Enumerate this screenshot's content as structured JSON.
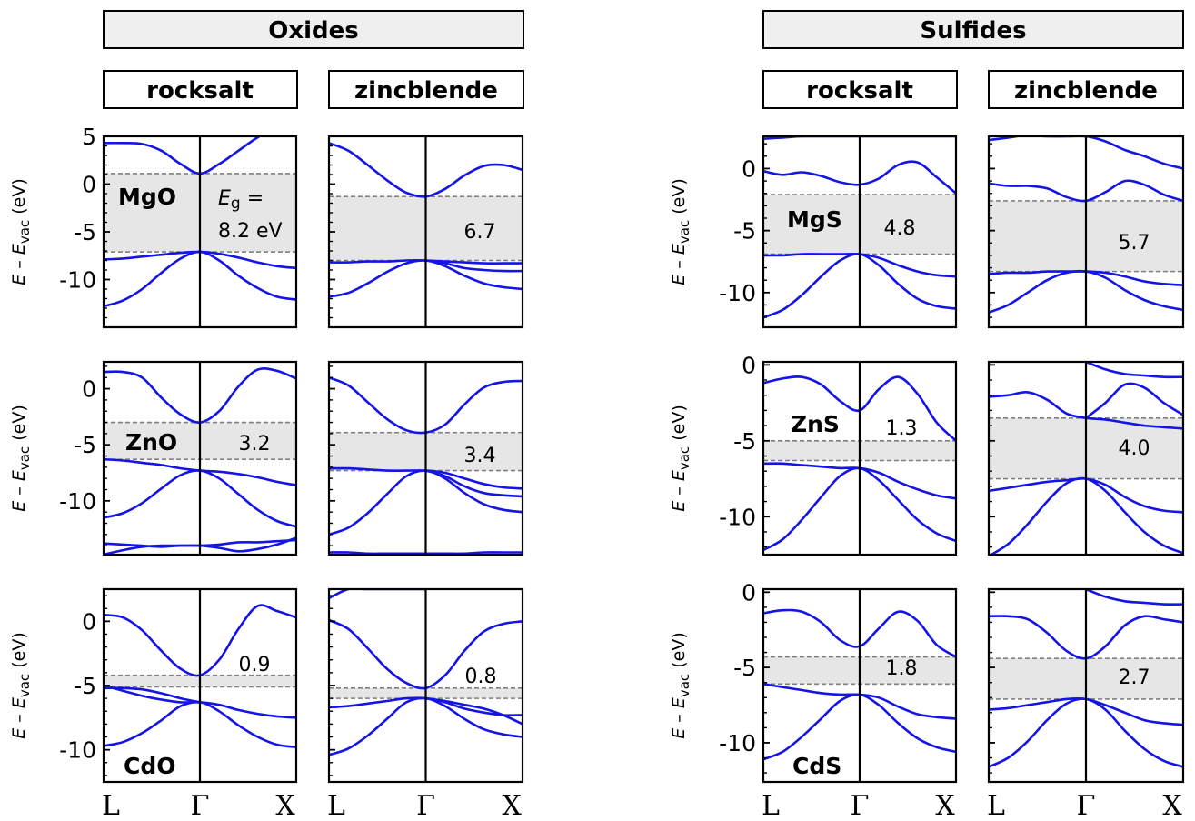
{
  "groups": [
    {
      "title": "Oxides",
      "structures": [
        "rocksalt",
        "zincblende"
      ]
    },
    {
      "title": "Sulfides",
      "structures": [
        "rocksalt",
        "zincblende"
      ]
    }
  ],
  "kpoints": [
    "L",
    "Γ",
    "X"
  ],
  "ylabel": {
    "e": "E",
    "dash": " – ",
    "sub_e": "E",
    "sub": "vac",
    "unit": " (eV)"
  },
  "eg_label": {
    "prefix": "E",
    "sub": "g",
    "eq": " ="
  },
  "colors": {
    "band": "#1414e6",
    "gap": "#e6e6e6",
    "dash": "#808080",
    "header": "#efefef"
  },
  "chart_data": [
    {
      "type": "line",
      "material": "MgO",
      "structure": "rocksalt",
      "gap_label": "8.2 eV",
      "gap": 8.2,
      "vbm": -7.1,
      "cbm": 1.1,
      "ylim": [
        -15,
        5
      ],
      "yticks": [
        5,
        0,
        -5,
        -10
      ],
      "x": [
        0,
        0.1,
        0.2,
        0.3,
        0.4,
        0.5,
        0.6,
        0.7,
        0.8,
        0.9,
        1.0
      ],
      "series": [
        {
          "left": [
            4.3,
            4.3,
            4.2,
            3.5,
            2.1,
            1.1
          ],
          "right": [
            1.1,
            2.1,
            3.5,
            4.9,
            6.0,
            6.6
          ]
        },
        {
          "left": [
            -7.9,
            -7.8,
            -7.6,
            -7.4,
            -7.2,
            -7.1
          ],
          "right": [
            -7.1,
            -7.3,
            -7.7,
            -8.2,
            -8.6,
            -8.8
          ]
        },
        {
          "left": [
            -12.8,
            -12.2,
            -11.0,
            -9.3,
            -7.8,
            -7.1
          ],
          "right": [
            -7.1,
            -8.0,
            -9.6,
            -10.9,
            -11.8,
            -12.1
          ]
        }
      ]
    },
    {
      "type": "line",
      "material": "",
      "structure": "zincblende",
      "gap_label": "6.7",
      "gap": 6.7,
      "vbm": -8.0,
      "cbm": -1.3,
      "ylim": [
        -15,
        5
      ],
      "yticks": [
        5,
        0,
        -5,
        -10
      ],
      "series": [
        {
          "left": [
            4.3,
            3.5,
            2.0,
            0.4,
            -0.9,
            -1.3
          ],
          "right": [
            -1.3,
            -0.5,
            0.9,
            1.9,
            2.0,
            1.5
          ]
        },
        {
          "left": [
            -8.2,
            -8.2,
            -8.1,
            -8.1,
            -8.0,
            -8.0
          ],
          "right": [
            -8.0,
            -8.1,
            -8.2,
            -8.3,
            -8.3,
            -8.3
          ]
        },
        {
          "left": [
            -11.8,
            -11.4,
            -10.4,
            -9.2,
            -8.3,
            -8.0
          ],
          "right": [
            -8.0,
            -8.6,
            -9.6,
            -10.4,
            -10.8,
            -11.0
          ]
        },
        {
          "left": [],
          "right": [
            -8.0,
            -8.3,
            -8.8,
            -9.0,
            -9.1,
            -9.1
          ]
        }
      ]
    },
    {
      "type": "line",
      "material": "MgS",
      "structure": "rocksalt",
      "gap_label": "4.8",
      "gap": 4.8,
      "vbm": -6.9,
      "cbm": -2.1,
      "ylim": [
        -12.8,
        2.6
      ],
      "yticks": [
        0,
        -5,
        -10
      ],
      "series": [
        {
          "left": [
            2.4,
            2.5,
            2.6,
            2.6,
            2.6,
            2.6
          ],
          "right": [
            2.6,
            2.6,
            2.6,
            2.6,
            2.6,
            2.6
          ]
        },
        {
          "left": [
            -0.2,
            -0.5,
            -0.3,
            -0.6,
            -1.1,
            -1.3
          ],
          "right": [
            -1.3,
            -0.8,
            0.3,
            0.5,
            -0.7,
            -2.0
          ]
        },
        {
          "left": [
            -7.0,
            -7.0,
            -6.9,
            -6.9,
            -6.9,
            -6.9
          ],
          "right": [
            -6.9,
            -7.2,
            -7.8,
            -8.3,
            -8.6,
            -8.7
          ]
        },
        {
          "left": [
            -12.0,
            -11.4,
            -10.2,
            -8.7,
            -7.4,
            -6.9
          ],
          "right": [
            -6.9,
            -7.8,
            -9.3,
            -10.5,
            -11.1,
            -11.3
          ]
        }
      ]
    },
    {
      "type": "line",
      "material": "",
      "structure": "zincblende",
      "gap_label": "5.7",
      "gap": 5.7,
      "vbm": -8.3,
      "cbm": -2.6,
      "ylim": [
        -12.8,
        2.6
      ],
      "yticks": [
        0,
        -5,
        -10
      ],
      "series": [
        {
          "left": [
            2.3,
            2.5,
            2.7,
            2.6,
            2.6,
            2.6
          ],
          "right": [
            2.6,
            2.2,
            1.5,
            1.0,
            0.4,
            0.0
          ]
        },
        {
          "left": [
            -1.2,
            -1.4,
            -1.4,
            -1.6,
            -2.3,
            -2.6
          ],
          "right": [
            -2.6,
            -1.9,
            -1.0,
            -1.3,
            -2.1,
            -2.6
          ]
        },
        {
          "left": [
            -8.5,
            -8.4,
            -8.4,
            -8.3,
            -8.3,
            -8.3
          ],
          "right": [
            -8.3,
            -8.4,
            -8.7,
            -9.1,
            -9.3,
            -9.4
          ]
        },
        {
          "left": [
            -11.6,
            -11.0,
            -10.0,
            -9.0,
            -8.4,
            -8.3
          ],
          "right": [
            -8.3,
            -8.8,
            -9.8,
            -10.6,
            -11.1,
            -11.4
          ]
        }
      ]
    },
    {
      "type": "line",
      "material": "ZnO",
      "structure": "rocksalt",
      "gap_label": "3.2",
      "gap": 3.2,
      "vbm": -6.3,
      "cbm": -3.0,
      "ylim": [
        -14.8,
        2.4
      ],
      "yticks": [
        0,
        -5,
        -10
      ],
      "series": [
        {
          "left": [
            1.5,
            1.5,
            1.0,
            -0.8,
            -2.3,
            -3.0
          ],
          "right": [
            -3.0,
            -2.0,
            0.2,
            1.7,
            1.6,
            0.9
          ]
        },
        {
          "left": [
            -6.3,
            -6.4,
            -6.6,
            -6.8,
            -7.1,
            -7.3
          ],
          "right": [
            -7.3,
            -7.4,
            -7.6,
            -7.9,
            -8.3,
            -8.6
          ]
        },
        {
          "left": [
            -11.5,
            -11.1,
            -10.2,
            -8.9,
            -7.7,
            -7.3
          ],
          "right": [
            -7.3,
            -8.0,
            -9.4,
            -10.8,
            -11.8,
            -12.3
          ]
        },
        {
          "left": [
            -13.8,
            -13.9,
            -14.0,
            -14.1,
            -14.0,
            -14.0
          ],
          "right": [
            -14.0,
            -13.9,
            -13.7,
            -13.7,
            -13.6,
            -13.5
          ]
        },
        {
          "left": [
            -14.8,
            -14.4,
            -14.1,
            -14.0,
            -14.0,
            -14.0
          ],
          "right": [
            -14.0,
            -14.2,
            -14.5,
            -14.3,
            -13.9,
            -13.3
          ]
        }
      ]
    },
    {
      "type": "line",
      "material": "",
      "structure": "zincblende",
      "gap_label": "3.4",
      "gap": 3.4,
      "vbm": -7.3,
      "cbm": -3.9,
      "ylim": [
        -14.8,
        2.4
      ],
      "yticks": [
        0,
        -5,
        -10
      ],
      "series": [
        {
          "left": [
            1.0,
            0.3,
            -1.2,
            -2.7,
            -3.7,
            -3.9
          ],
          "right": [
            -3.9,
            -3.2,
            -1.4,
            0.1,
            0.6,
            0.7
          ]
        },
        {
          "left": [
            -7.1,
            -7.1,
            -7.2,
            -7.3,
            -7.3,
            -7.3
          ],
          "right": [
            -7.3,
            -7.5,
            -8.0,
            -8.5,
            -8.8,
            -8.9
          ]
        },
        {
          "left": [
            -13.0,
            -12.4,
            -11.1,
            -9.4,
            -7.8,
            -7.3
          ],
          "right": [
            -7.3,
            -8.0,
            -9.3,
            -10.3,
            -10.8,
            -11.0
          ]
        },
        {
          "left": [],
          "right": [
            -7.3,
            -7.8,
            -8.7,
            -9.3,
            -9.5,
            -9.6
          ]
        },
        {
          "left": [
            -14.6,
            -14.6,
            -14.7,
            -14.7,
            -14.7,
            -14.7
          ],
          "right": [
            -14.7,
            -14.7,
            -14.7,
            -14.6,
            -14.6,
            -14.6
          ]
        }
      ]
    },
    {
      "type": "line",
      "material": "ZnS",
      "structure": "rocksalt",
      "gap_label": "1.3",
      "gap": 1.3,
      "vbm": -6.3,
      "cbm": -5.0,
      "ylim": [
        -12.5,
        0.2
      ],
      "yticks": [
        0,
        -5,
        -10
      ],
      "series": [
        {
          "left": [
            -1.2,
            -0.9,
            -0.8,
            -1.3,
            -2.4,
            -3.0
          ],
          "right": [
            -3.0,
            -1.6,
            -0.8,
            -1.9,
            -3.8,
            -5.0
          ]
        },
        {
          "left": [
            -6.5,
            -6.5,
            -6.6,
            -6.7,
            -6.8,
            -6.8
          ],
          "right": [
            -6.8,
            -7.1,
            -7.7,
            -8.2,
            -8.6,
            -8.8
          ]
        },
        {
          "left": [
            -12.2,
            -11.5,
            -10.2,
            -8.7,
            -7.3,
            -6.8
          ],
          "right": [
            -6.8,
            -7.6,
            -8.9,
            -10.2,
            -11.1,
            -11.6
          ]
        }
      ]
    },
    {
      "type": "line",
      "material": "",
      "structure": "zincblende",
      "gap_label": "4.0",
      "gap": 4.0,
      "vbm": -7.5,
      "cbm": -3.5,
      "ylim": [
        -12.5,
        0.2
      ],
      "yticks": [
        0,
        -5,
        -10
      ],
      "series": [
        {
          "left": [],
          "right": [
            -3.5,
            -2.5,
            -1.3,
            -1.5,
            -2.5,
            -3.3
          ]
        },
        {
          "left": [
            -2.1,
            -2.0,
            -1.8,
            -2.3,
            -3.2,
            -3.5
          ],
          "right": [
            -3.5,
            -3.6,
            -3.8,
            -4.0,
            -4.1,
            -4.2
          ]
        },
        {
          "left": [
            -8.3,
            -8.1,
            -7.9,
            -7.7,
            -7.6,
            -7.5
          ],
          "right": [
            -7.5,
            -7.9,
            -8.7,
            -9.3,
            -9.6,
            -9.7
          ]
        },
        {
          "left": [
            -12.6,
            -11.8,
            -10.5,
            -9.0,
            -7.8,
            -7.5
          ],
          "right": [
            -7.5,
            -8.3,
            -9.7,
            -11.0,
            -11.9,
            -12.4
          ]
        },
        {
          "left": [],
          "right": [
            0.2,
            -0.3,
            -0.6,
            -0.7,
            -0.8,
            -0.8
          ]
        }
      ]
    },
    {
      "type": "line",
      "material": "CdO",
      "structure": "rocksalt",
      "gap_label": "0.9",
      "gap": 0.9,
      "vbm": -5.1,
      "cbm": -4.2,
      "ylim": [
        -12.5,
        2.5
      ],
      "yticks": [
        0,
        -5,
        -10
      ],
      "series": [
        {
          "left": [
            0.5,
            0.3,
            -0.7,
            -2.3,
            -3.7,
            -4.2
          ],
          "right": [
            -4.2,
            -3.0,
            -0.6,
            1.2,
            0.8,
            0.3
          ]
        },
        {
          "left": [
            -5.0,
            -5.4,
            -5.8,
            -6.1,
            -6.3,
            -6.3
          ],
          "right": [
            -6.3,
            -6.5,
            -6.9,
            -7.2,
            -7.4,
            -7.5
          ]
        },
        {
          "left": [
            -9.7,
            -9.4,
            -8.7,
            -7.7,
            -6.6,
            -6.3
          ],
          "right": [
            -6.3,
            -7.0,
            -8.1,
            -9.0,
            -9.6,
            -9.8
          ]
        },
        {
          "left": [
            -5.2,
            -5.2,
            -5.3,
            -5.6,
            -6.0,
            -6.3
          ],
          "right": []
        }
      ]
    },
    {
      "type": "line",
      "material": "",
      "structure": "zincblende",
      "gap_label": "0.8",
      "gap": 0.8,
      "vbm": -6.0,
      "cbm": -5.2,
      "ylim": [
        -12.5,
        2.5
      ],
      "yticks": [
        0,
        -5,
        -10
      ],
      "series": [
        {
          "left": [
            1.8,
            2.5,
            2.5,
            2.5,
            2.5,
            2.5
          ],
          "right": []
        },
        {
          "left": [
            0.1,
            -0.6,
            -2.1,
            -3.7,
            -4.8,
            -5.2
          ],
          "right": [
            -5.2,
            -4.2,
            -2.3,
            -0.8,
            -0.2,
            0.0
          ]
        },
        {
          "left": [
            -6.7,
            -6.6,
            -6.4,
            -6.2,
            -6.0,
            -6.0
          ],
          "right": [
            -6.0,
            -6.3,
            -6.8,
            -7.1,
            -7.3,
            -7.3
          ]
        },
        {
          "left": [
            -10.4,
            -9.9,
            -8.9,
            -7.6,
            -6.3,
            -6.0
          ],
          "right": [
            -6.0,
            -6.6,
            -7.6,
            -8.4,
            -8.8,
            -9.0
          ]
        },
        {
          "left": [],
          "right": [
            -6.0,
            -6.2,
            -6.5,
            -6.8,
            -7.3,
            -8.0
          ]
        }
      ]
    },
    {
      "type": "line",
      "material": "CdS",
      "structure": "rocksalt",
      "gap_label": "1.8",
      "gap": 1.8,
      "vbm": -6.1,
      "cbm": -4.3,
      "ylim": [
        -12.6,
        0.2
      ],
      "yticks": [
        0,
        -5,
        -10
      ],
      "series": [
        {
          "left": [
            -1.4,
            -1.2,
            -1.3,
            -2.0,
            -3.2,
            -3.6
          ],
          "right": [
            -3.6,
            -2.4,
            -1.3,
            -1.9,
            -3.5,
            -4.3
          ]
        },
        {
          "left": [
            -6.1,
            -6.3,
            -6.5,
            -6.7,
            -6.8,
            -6.8
          ],
          "right": [
            -6.8,
            -7.0,
            -7.6,
            -8.1,
            -8.3,
            -8.4
          ]
        },
        {
          "left": [
            -11.1,
            -10.6,
            -9.6,
            -8.4,
            -7.2,
            -6.8
          ],
          "right": [
            -6.8,
            -7.5,
            -8.7,
            -9.7,
            -10.3,
            -10.6
          ]
        }
      ]
    },
    {
      "type": "line",
      "material": "",
      "structure": "zincblende",
      "gap_label": "2.7",
      "gap": 2.7,
      "vbm": -7.1,
      "cbm": -4.4,
      "ylim": [
        -12.6,
        0.2
      ],
      "yticks": [
        0,
        -5,
        -10
      ],
      "series": [
        {
          "left": [
            -1.6,
            -1.6,
            -1.8,
            -2.7,
            -3.9,
            -4.4
          ],
          "right": [
            -4.4,
            -3.6,
            -2.2,
            -1.6,
            -1.8,
            -2.0
          ]
        },
        {
          "left": [
            -7.8,
            -7.7,
            -7.5,
            -7.3,
            -7.1,
            -7.1
          ],
          "right": [
            -7.1,
            -7.5,
            -8.0,
            -8.5,
            -8.7,
            -8.8
          ]
        },
        {
          "left": [
            -11.6,
            -11.0,
            -9.9,
            -8.5,
            -7.4,
            -7.1
          ],
          "right": [
            -7.1,
            -7.8,
            -9.2,
            -10.4,
            -11.2,
            -11.6
          ]
        },
        {
          "left": [],
          "right": [
            0.2,
            -0.3,
            -0.6,
            -0.7,
            -0.8,
            -0.8
          ]
        }
      ]
    }
  ]
}
